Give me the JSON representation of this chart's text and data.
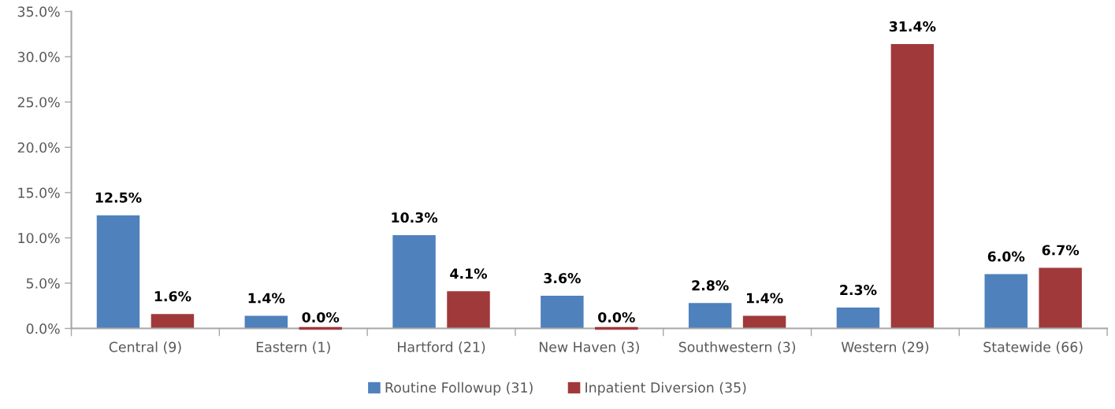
{
  "chart_data": {
    "type": "bar",
    "categories": [
      "Central (9)",
      "Eastern (1)",
      "Hartford (21)",
      "New Haven (3)",
      "Southwestern (3)",
      "Western (29)",
      "Statewide (66)"
    ],
    "series": [
      {
        "name": "Routine Followup (31)",
        "color": "#4f81bd",
        "values": [
          12.5,
          1.4,
          10.3,
          3.6,
          2.8,
          2.3,
          6.0
        ],
        "value_labels": [
          "12.5%",
          "1.4%",
          "10.3%",
          "3.6%",
          "2.8%",
          "2.3%",
          "6.0%"
        ]
      },
      {
        "name": "Inpatient Diversion (35)",
        "color": "#a0393a",
        "values": [
          1.6,
          0.0,
          4.1,
          0.0,
          1.4,
          31.4,
          6.7
        ],
        "value_labels": [
          "1.6%",
          "0.0%",
          "4.1%",
          "0.0%",
          "1.4%",
          "31.4%",
          "6.7%"
        ]
      }
    ],
    "ylim": [
      0,
      35
    ],
    "yticks": [
      {
        "value": 0,
        "label": "0.0%"
      },
      {
        "value": 5,
        "label": "5.0%"
      },
      {
        "value": 10,
        "label": "10.0%"
      },
      {
        "value": 15,
        "label": "15.0%"
      },
      {
        "value": 20,
        "label": "20.0%"
      },
      {
        "value": 25,
        "label": "25.0%"
      },
      {
        "value": 30,
        "label": "30.0%"
      },
      {
        "value": 35,
        "label": "35.0%"
      }
    ],
    "grid": false,
    "legend": "bottom"
  }
}
